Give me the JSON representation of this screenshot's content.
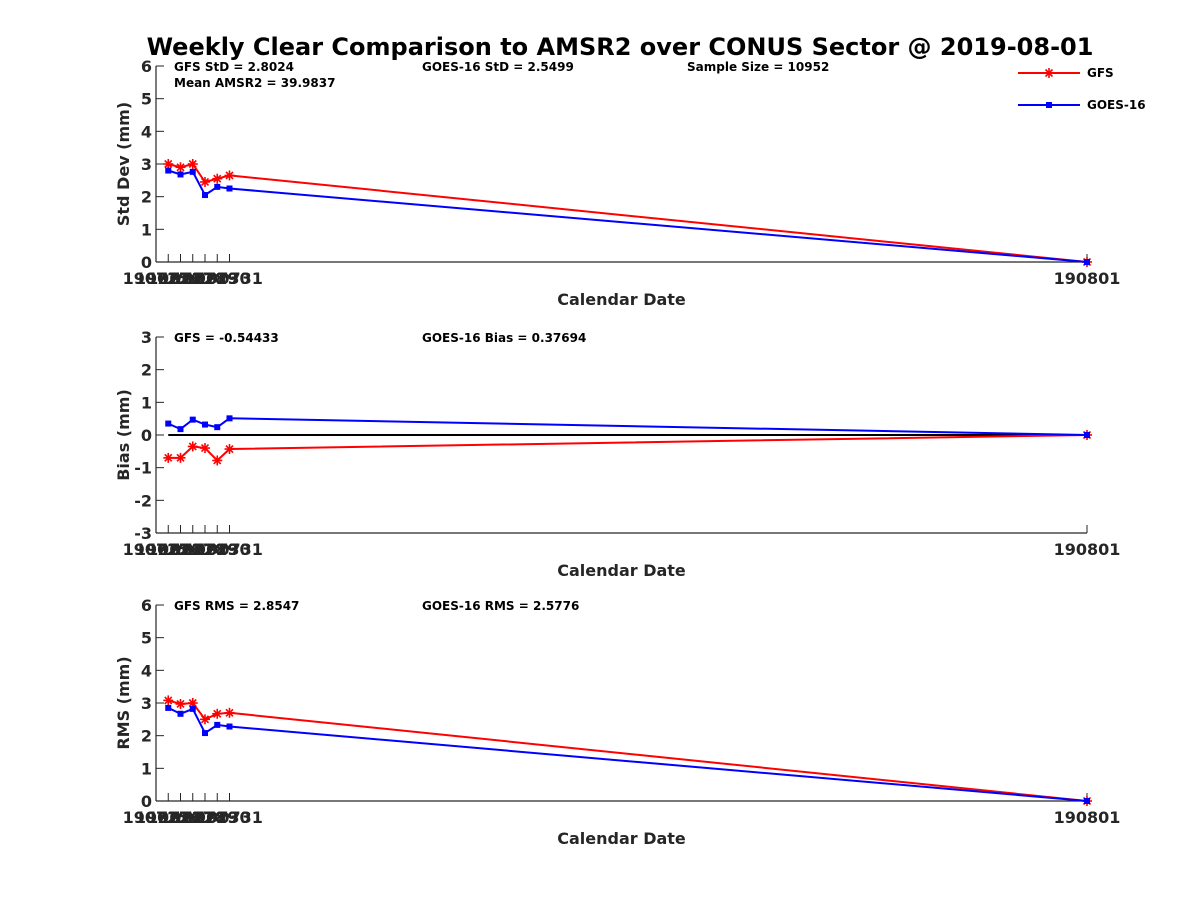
{
  "chart_data": {
    "title": "Weekly Clear Comparison to AMSR2 over CONUS Sector @ 2019-08-01",
    "type": "line",
    "legend": {
      "placement": "top-right",
      "entries": [
        {
          "name": "GFS",
          "color": "#ff0000",
          "marker": "asterisk"
        },
        {
          "name": "GOES-16",
          "color": "#0000ff",
          "marker": "square"
        }
      ]
    },
    "panels": [
      {
        "id": "std",
        "xlabel": "Calendar Date",
        "ylabel": "Std Dev (mm)",
        "xlim": [
          190725,
          190801
        ],
        "ylim": [
          0,
          6
        ],
        "xticks": [
          "190725",
          "190726",
          "190727",
          "190728",
          "190729",
          "190730",
          "190731",
          "190801"
        ],
        "yticks": [
          "0",
          "1",
          "2",
          "3",
          "4",
          "5",
          "6"
        ],
        "zero_line": false,
        "stats": [
          {
            "text": "GFS StD = 2.8024",
            "col": "left",
            "row": 0
          },
          {
            "text": "Mean AMSR2 = 39.9837",
            "col": "left",
            "row": 1
          },
          {
            "text": "GOES-16 StD = 2.5499",
            "col": "mid",
            "row": 0
          },
          {
            "text": "Sample Size = 10952",
            "col": "right",
            "row": 0
          }
        ],
        "x": [
          "190726",
          "190727",
          "190728",
          "190729",
          "190730",
          "190731",
          "190801"
        ],
        "series": [
          {
            "name": "GFS",
            "values": [
              3.0,
              2.9,
              3.0,
              2.45,
              2.55,
              2.65,
              0.0
            ]
          },
          {
            "name": "GOES-16",
            "values": [
              2.8,
              2.68,
              2.76,
              2.05,
              2.3,
              2.25,
              0.0
            ]
          }
        ]
      },
      {
        "id": "bias",
        "xlabel": "Calendar Date",
        "ylabel": "Bias (mm)",
        "xlim": [
          190725,
          190801
        ],
        "ylim": [
          -3,
          3
        ],
        "xticks": [
          "190725",
          "190726",
          "190727",
          "190728",
          "190729",
          "190730",
          "190731",
          "190801"
        ],
        "yticks": [
          "-3",
          "-2",
          "-1",
          "0",
          "1",
          "2",
          "3"
        ],
        "zero_line": true,
        "stats": [
          {
            "text": "GFS = -0.54433",
            "col": "left",
            "row": 0
          },
          {
            "text": "GOES-16 Bias  = 0.37694",
            "col": "mid",
            "row": 0
          }
        ],
        "x": [
          "190726",
          "190727",
          "190728",
          "190729",
          "190730",
          "190731",
          "190801"
        ],
        "series": [
          {
            "name": "GFS",
            "values": [
              -0.7,
              -0.7,
              -0.35,
              -0.4,
              -0.78,
              -0.43,
              0.0
            ]
          },
          {
            "name": "GOES-16",
            "values": [
              0.35,
              0.18,
              0.47,
              0.32,
              0.24,
              0.51,
              0.0
            ]
          }
        ]
      },
      {
        "id": "rms",
        "xlabel": "Calendar Date",
        "ylabel": "RMS (mm)",
        "xlim": [
          190725,
          190801
        ],
        "ylim": [
          0,
          6
        ],
        "xticks": [
          "190725",
          "190726",
          "190727",
          "190728",
          "190729",
          "190730",
          "190731",
          "190801"
        ],
        "yticks": [
          "0",
          "1",
          "2",
          "3",
          "4",
          "5",
          "6"
        ],
        "zero_line": false,
        "stats": [
          {
            "text": "GFS RMS = 2.8547",
            "col": "left",
            "row": 0
          },
          {
            "text": "GOES-16 RMS = 2.5776",
            "col": "mid",
            "row": 0
          }
        ],
        "x": [
          "190726",
          "190727",
          "190728",
          "190729",
          "190730",
          "190731",
          "190801"
        ],
        "series": [
          {
            "name": "GFS",
            "values": [
              3.08,
              2.97,
              3.0,
              2.5,
              2.67,
              2.7,
              0.0
            ]
          },
          {
            "name": "GOES-16",
            "values": [
              2.85,
              2.67,
              2.82,
              2.08,
              2.33,
              2.28,
              0.0
            ]
          }
        ]
      }
    ]
  }
}
